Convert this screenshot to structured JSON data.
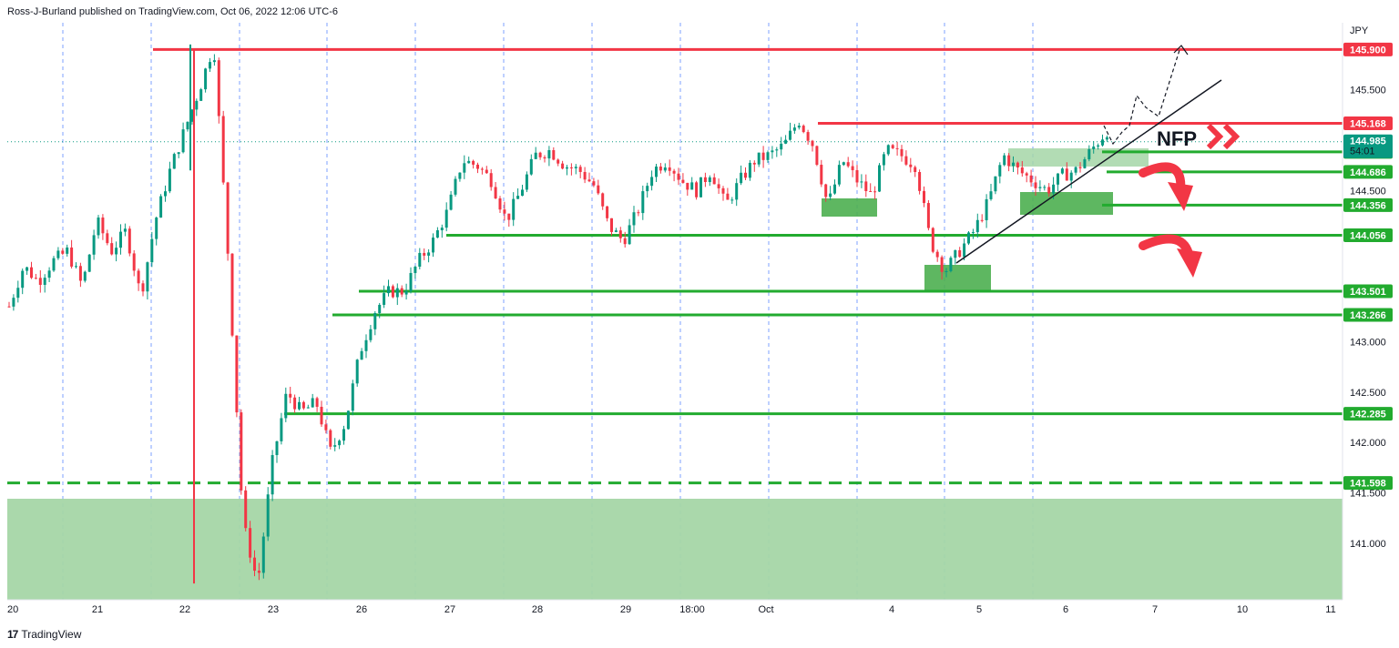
{
  "publisher": "Ross-J-Burland published on TradingView.com, Oct 06, 2022 12:06 UTC-6",
  "footer": {
    "logo_glyph": "17",
    "brand": "TradingView"
  },
  "colors": {
    "red": "#f23645",
    "green": "#22ab2f",
    "zone": "#4caf50",
    "zone_light": "#a5d6a7",
    "teal": "#089981",
    "grid": "#2962ff"
  },
  "chart_data": {
    "type": "candlestick",
    "symbol_currency": "JPY",
    "ylim": [
      140.56,
      146.05
    ],
    "price_axis_ticks": [
      "145.500",
      "145.000",
      "144.500",
      "143.000",
      "142.500",
      "142.000",
      "141.500",
      "141.000"
    ],
    "time_axis_labels": [
      "20",
      "21",
      "22",
      "23",
      "26",
      "27",
      "28",
      "29",
      "18:00",
      "Oct",
      "4",
      "5",
      "6",
      "7",
      "10",
      "11"
    ],
    "current_price": {
      "value": "144.985",
      "countdown": "54:01"
    },
    "annotation_text": "NFP",
    "levels": [
      {
        "value": 145.9,
        "label": "145.900",
        "color": "red",
        "style": "solid"
      },
      {
        "value": 145.168,
        "label": "145.168",
        "color": "red",
        "style": "solid"
      },
      {
        "value": 144.884,
        "label": "144.884",
        "color": "green",
        "style": "solid"
      },
      {
        "value": 144.686,
        "label": "144.686",
        "color": "green",
        "style": "solid"
      },
      {
        "value": 144.356,
        "label": "144.356",
        "color": "green",
        "style": "solid"
      },
      {
        "value": 144.056,
        "label": "144.056",
        "color": "green",
        "style": "solid"
      },
      {
        "value": 143.501,
        "label": "143.501",
        "color": "green",
        "style": "solid"
      },
      {
        "value": 143.266,
        "label": "143.266",
        "color": "green",
        "style": "solid"
      },
      {
        "value": 142.285,
        "label": "142.285",
        "color": "green",
        "style": "solid"
      },
      {
        "value": 141.598,
        "label": "141.598",
        "color": "green",
        "style": "dashed"
      }
    ],
    "price_path": [
      [
        0,
        143.35
      ],
      [
        1,
        143.75
      ],
      [
        2,
        143.6
      ],
      [
        3,
        143.8
      ],
      [
        4,
        143.9
      ],
      [
        5,
        143.55
      ],
      [
        6,
        144.2
      ],
      [
        7,
        143.9
      ],
      [
        8,
        144.1
      ],
      [
        9,
        143.45
      ],
      [
        10,
        144.2
      ],
      [
        11,
        144.7
      ],
      [
        12,
        145.1
      ],
      [
        13,
        145.5
      ],
      [
        14,
        145.95
      ],
      [
        15,
        143.8
      ],
      [
        16,
        141.2
      ],
      [
        17,
        140.6
      ],
      [
        18,
        141.8
      ],
      [
        19,
        142.5
      ],
      [
        20,
        142.3
      ],
      [
        21,
        142.4
      ],
      [
        22,
        141.9
      ],
      [
        23,
        142.2
      ],
      [
        24,
        142.9
      ],
      [
        25,
        143.3
      ],
      [
        26,
        143.5
      ],
      [
        27,
        143.5
      ],
      [
        28,
        143.8
      ],
      [
        29,
        144.0
      ],
      [
        30,
        144.3
      ],
      [
        31,
        144.8
      ],
      [
        32,
        144.75
      ],
      [
        33,
        144.6
      ],
      [
        34,
        144.2
      ],
      [
        35,
        144.5
      ],
      [
        36,
        144.85
      ],
      [
        37,
        144.9
      ],
      [
        38,
        144.75
      ],
      [
        39,
        144.7
      ],
      [
        40,
        144.55
      ],
      [
        41,
        144.15
      ],
      [
        42,
        144.0
      ],
      [
        43,
        144.3
      ],
      [
        44,
        144.7
      ],
      [
        45,
        144.8
      ],
      [
        46,
        144.6
      ],
      [
        47,
        144.5
      ],
      [
        48,
        144.7
      ],
      [
        49,
        144.35
      ],
      [
        50,
        144.6
      ],
      [
        51,
        144.8
      ],
      [
        52,
        144.85
      ],
      [
        53,
        144.95
      ],
      [
        54,
        145.2
      ],
      [
        55,
        144.95
      ],
      [
        56,
        144.35
      ],
      [
        57,
        144.8
      ],
      [
        58,
        144.6
      ],
      [
        59,
        144.45
      ],
      [
        60,
        144.9
      ],
      [
        61,
        144.85
      ],
      [
        62,
        144.75
      ],
      [
        63,
        144.0
      ],
      [
        64,
        143.7
      ],
      [
        65,
        143.9
      ],
      [
        66,
        144.1
      ],
      [
        67,
        144.4
      ],
      [
        68,
        144.85
      ],
      [
        69,
        144.7
      ],
      [
        70,
        144.6
      ],
      [
        71,
        144.5
      ],
      [
        72,
        144.65
      ],
      [
        73,
        144.7
      ],
      [
        74,
        144.9
      ],
      [
        75,
        145.08
      ]
    ]
  }
}
